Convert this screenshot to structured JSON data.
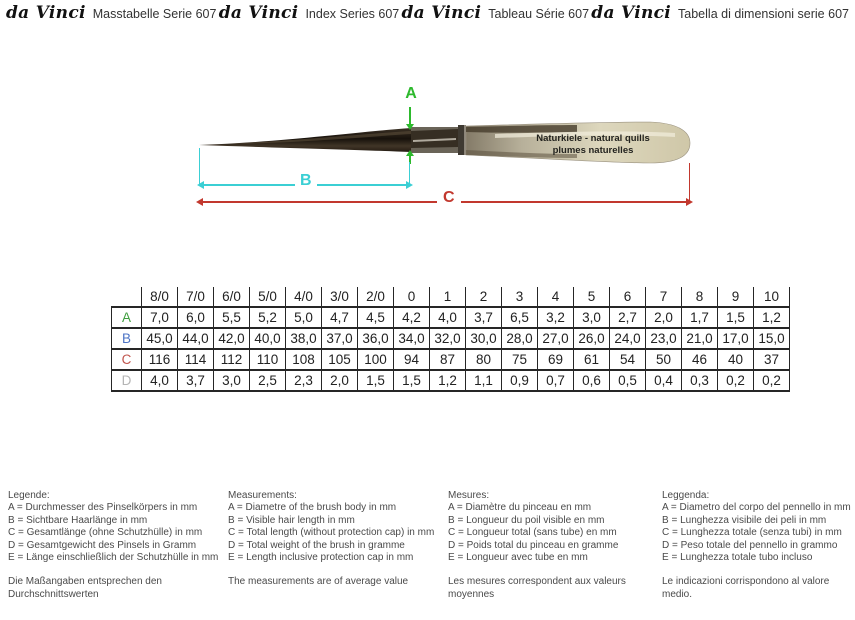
{
  "header": {
    "entries": [
      {
        "logo": "da Vinci",
        "title": "Masstabelle Serie 607"
      },
      {
        "logo": "da Vinci",
        "title": "Index Series 607"
      },
      {
        "logo": "da Vinci",
        "title": "Tableau Série 607"
      },
      {
        "logo": "da Vinci",
        "title": "Tabella di dimensioni serie 607"
      }
    ]
  },
  "illustration": {
    "quill_label_line1": "Naturkiele - natural quills",
    "quill_label_line2": "plumes naturelles",
    "dim_a_label": "A",
    "dim_b_label": "B",
    "dim_c_label": "C",
    "colors": {
      "dim_a": "#2db92d",
      "dim_b": "#3bcfd4",
      "dim_c": "#c2382e"
    }
  },
  "size_table": {
    "columns": [
      "8/0",
      "7/0",
      "6/0",
      "5/0",
      "4/0",
      "3/0",
      "2/0",
      "0",
      "1",
      "2",
      "3",
      "4",
      "5",
      "6",
      "7",
      "8",
      "9",
      "10"
    ],
    "rows": [
      {
        "label": "A",
        "color": "#3f9e3f",
        "values": [
          "7,0",
          "6,0",
          "5,5",
          "5,2",
          "5,0",
          "4,7",
          "4,5",
          "4,2",
          "4,0",
          "3,7",
          "6,5",
          "3,2",
          "3,0",
          "2,7",
          "2,0",
          "1,7",
          "1,5",
          "1,2"
        ]
      },
      {
        "label": "B",
        "color": "#4d74c6",
        "values": [
          "45,0",
          "44,0",
          "42,0",
          "40,0",
          "38,0",
          "37,0",
          "36,0",
          "34,0",
          "32,0",
          "30,0",
          "28,0",
          "27,0",
          "26,0",
          "24,0",
          "23,0",
          "21,0",
          "17,0",
          "15,0"
        ]
      },
      {
        "label": "C",
        "color": "#c0544c",
        "values": [
          "116",
          "114",
          "112",
          "110",
          "108",
          "105",
          "100",
          "94",
          "87",
          "80",
          "75",
          "69",
          "61",
          "54",
          "50",
          "46",
          "40",
          "37"
        ]
      },
      {
        "label": "D",
        "color": "#b5b5b5",
        "values": [
          "4,0",
          "3,7",
          "3,0",
          "2,5",
          "2,3",
          "2,0",
          "1,5",
          "1,5",
          "1,2",
          "1,1",
          "0,9",
          "0,7",
          "0,6",
          "0,5",
          "0,4",
          "0,3",
          "0,2",
          "0,2"
        ]
      }
    ]
  },
  "legends": [
    {
      "title": "Legende:",
      "items": [
        "A = Durchmesser des Pinselkörpers in mm",
        "B = Sichtbare Haarlänge in mm",
        "C = Gesamtlänge (ohne Schutzhülle) in mm",
        "D = Gesamtgewicht des Pinsels in Gramm",
        "E = Länge einschließlich der Schutzhülle in mm"
      ],
      "note": "Die Maßangaben entsprechen den Durchschnittswerten"
    },
    {
      "title": "Measurements:",
      "items": [
        "A = Diametre of the brush body in mm",
        "B = Visible hair length in mm",
        "C = Total length (without protection cap) in mm",
        "D = Total weight of the brush in gramme",
        "E =  Length inclusive protection cap in mm"
      ],
      "note": "The measurements are of average value"
    },
    {
      "title": "Mesures:",
      "items": [
        "A = Diamètre du pinceau en mm",
        "B = Longueur du poil visible en mm",
        "C = Longueur total (sans tube) en mm",
        "D = Poids total du pinceau en gramme",
        "E = Longueur avec tube en mm"
      ],
      "note": "Les mesures  correspondent aux valeurs moyennes"
    },
    {
      "title": "Leggenda:",
      "items": [
        "A = Diametro del corpo del pennello in mm",
        "B = Lunghezza visibile dei peli in mm",
        "C = Lunghezza totale (senza tubi) in mm",
        "D = Peso totale del pennello in grammo",
        "E = Lunghezza totale tubo incluso"
      ],
      "note": "Le indicazioni corrispondono al valore medio."
    }
  ]
}
